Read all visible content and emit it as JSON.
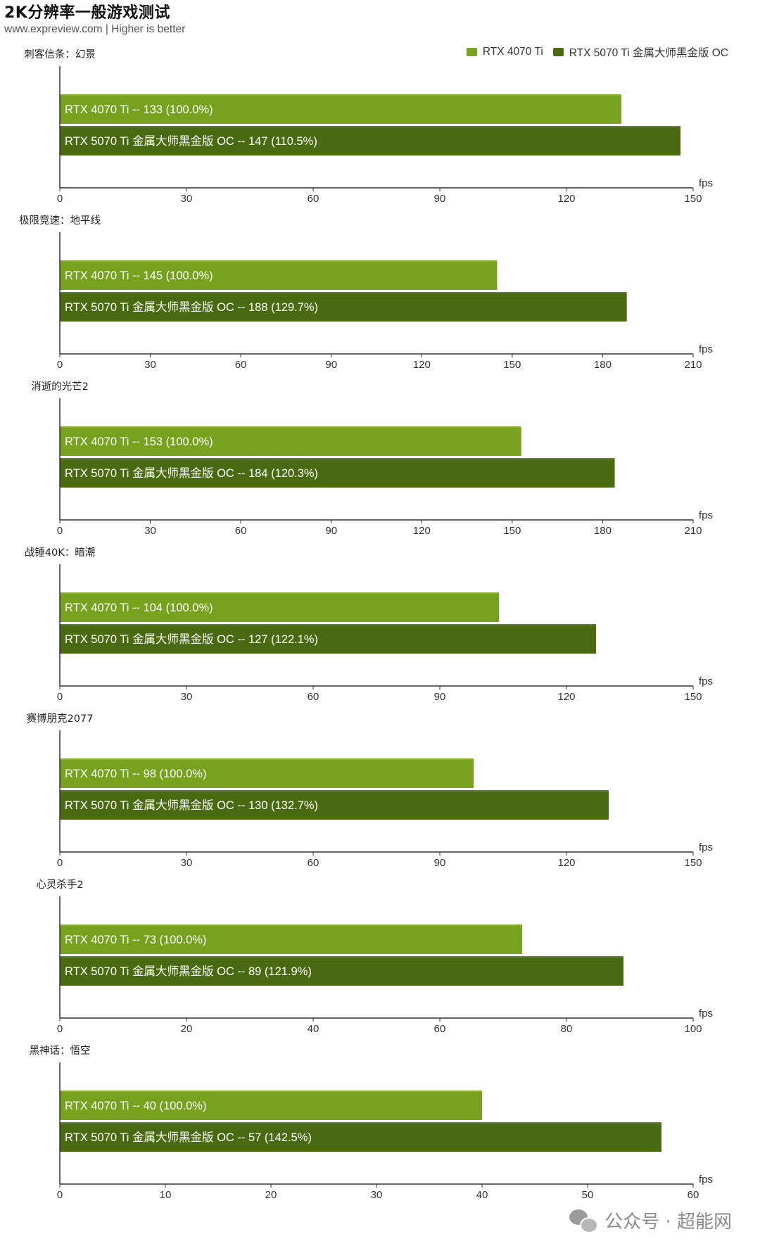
{
  "header": {
    "title": "2K分辨率一般游戏测试",
    "subtitle": "www.expreview.com | Higher is better"
  },
  "colors": {
    "series1": "#76a21e",
    "series2": "#4a6a12",
    "axis": "#333333",
    "bar_text": "#ffffff"
  },
  "legend": [
    {
      "name": "RTX 4070 Ti"
    },
    {
      "name": "RTX 5070 Ti 金属大师黑金版 OC"
    }
  ],
  "watermark": {
    "text": "公众号 · 超能网",
    "icon": "wechat-icon"
  },
  "chart_data": [
    {
      "type": "bar",
      "orientation": "horizontal",
      "title": "刺客信条：幻景",
      "unit": "fps",
      "xlim": [
        0,
        150
      ],
      "ticks": [
        0,
        30,
        60,
        90,
        120,
        150
      ],
      "series": [
        {
          "name": "RTX 4070 Ti",
          "value": 133,
          "label": "RTX 4070 Ti  --  133  (100.0%)"
        },
        {
          "name": "RTX 5070 Ti 金属大师黑金版 OC",
          "value": 147,
          "label": "RTX 5070 Ti 金属大师黑金版 OC  --  147  (110.5%)"
        }
      ]
    },
    {
      "type": "bar",
      "orientation": "horizontal",
      "title": "极限竞速：地平线",
      "unit": "fps",
      "xlim": [
        0,
        210
      ],
      "ticks": [
        0,
        30,
        60,
        90,
        120,
        150,
        180,
        210
      ],
      "series": [
        {
          "name": "RTX 4070 Ti",
          "value": 145,
          "label": "RTX 4070 Ti  --  145  (100.0%)"
        },
        {
          "name": "RTX 5070 Ti 金属大师黑金版 OC",
          "value": 188,
          "label": "RTX 5070 Ti 金属大师黑金版 OC  --  188  (129.7%)"
        }
      ]
    },
    {
      "type": "bar",
      "orientation": "horizontal",
      "title": "消逝的光芒2",
      "unit": "fps",
      "xlim": [
        0,
        210
      ],
      "ticks": [
        0,
        30,
        60,
        90,
        120,
        150,
        180,
        210
      ],
      "series": [
        {
          "name": "RTX 4070 Ti",
          "value": 153,
          "label": "RTX 4070 Ti  --  153  (100.0%)"
        },
        {
          "name": "RTX 5070 Ti 金属大师黑金版 OC",
          "value": 184,
          "label": "RTX 5070 Ti 金属大师黑金版 OC  --  184  (120.3%)"
        }
      ]
    },
    {
      "type": "bar",
      "orientation": "horizontal",
      "title": "战锤40K：暗潮",
      "unit": "fps",
      "xlim": [
        0,
        150
      ],
      "ticks": [
        0,
        30,
        60,
        90,
        120,
        150
      ],
      "series": [
        {
          "name": "RTX 4070 Ti",
          "value": 104,
          "label": "RTX 4070 Ti  --  104  (100.0%)"
        },
        {
          "name": "RTX 5070 Ti 金属大师黑金版 OC",
          "value": 127,
          "label": "RTX 5070 Ti 金属大师黑金版 OC  --  127  (122.1%)"
        }
      ]
    },
    {
      "type": "bar",
      "orientation": "horizontal",
      "title": "赛博朋克2077",
      "unit": "fps",
      "xlim": [
        0,
        150
      ],
      "ticks": [
        0,
        30,
        60,
        90,
        120,
        150
      ],
      "series": [
        {
          "name": "RTX 4070 Ti",
          "value": 98,
          "label": "RTX 4070 Ti  --  98  (100.0%)"
        },
        {
          "name": "RTX 5070 Ti 金属大师黑金版 OC",
          "value": 130,
          "label": "RTX 5070 Ti 金属大师黑金版 OC  --  130  (132.7%)"
        }
      ]
    },
    {
      "type": "bar",
      "orientation": "horizontal",
      "title": "心灵杀手2",
      "unit": "fps",
      "xlim": [
        0,
        100
      ],
      "ticks": [
        0,
        20,
        40,
        60,
        80,
        100
      ],
      "series": [
        {
          "name": "RTX 4070 Ti",
          "value": 73,
          "label": "RTX 4070 Ti  --  73  (100.0%)"
        },
        {
          "name": "RTX 5070 Ti 金属大师黑金版 OC",
          "value": 89,
          "label": "RTX 5070 Ti 金属大师黑金版 OC  --  89  (121.9%)"
        }
      ]
    },
    {
      "type": "bar",
      "orientation": "horizontal",
      "title": "黑神话：悟空",
      "unit": "fps",
      "xlim": [
        0,
        60
      ],
      "ticks": [
        0,
        10,
        20,
        30,
        40,
        50,
        60
      ],
      "series": [
        {
          "name": "RTX 4070 Ti",
          "value": 40,
          "label": "RTX 4070 Ti  --  40  (100.0%)"
        },
        {
          "name": "RTX 5070 Ti 金属大师黑金版 OC",
          "value": 57,
          "label": "RTX 5070 Ti 金属大师黑金版 OC  --  57  (142.5%)"
        }
      ]
    }
  ]
}
